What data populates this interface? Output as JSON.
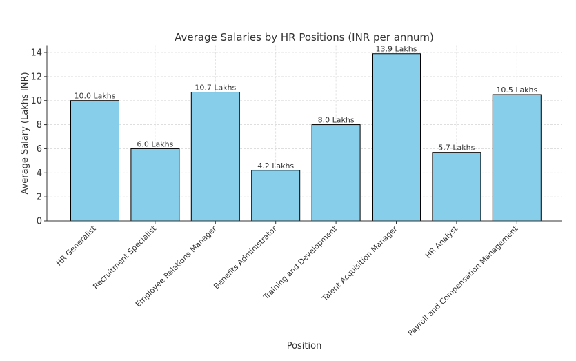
{
  "chart_data": {
    "type": "bar",
    "title": "Average Salaries by HR Positions (INR per annum)",
    "xlabel": "Position",
    "ylabel": "Average Salary (Lakhs INR)",
    "categories": [
      "HR Generalist",
      "Recruitment Specialist",
      "Employee Relations Manager",
      "Benefits Administrator",
      "Training and Development",
      "Talent Acquisition Manager",
      "HR Analyst",
      "Payroll and Compensation Management"
    ],
    "values": [
      10.0,
      6.0,
      10.7,
      4.2,
      8.0,
      13.9,
      5.7,
      10.5
    ],
    "data_labels": [
      "10.0 Lakhs",
      "6.0 Lakhs",
      "10.7 Lakhs",
      "4.2 Lakhs",
      "8.0 Lakhs",
      "13.9 Lakhs",
      "5.7 Lakhs",
      "10.5 Lakhs"
    ],
    "yticks": [
      0,
      2,
      4,
      6,
      8,
      10,
      12,
      14
    ],
    "ylim": [
      0,
      14.6
    ],
    "grid": true,
    "bar_color": "#87CEEB",
    "edge_color": "#000000"
  }
}
